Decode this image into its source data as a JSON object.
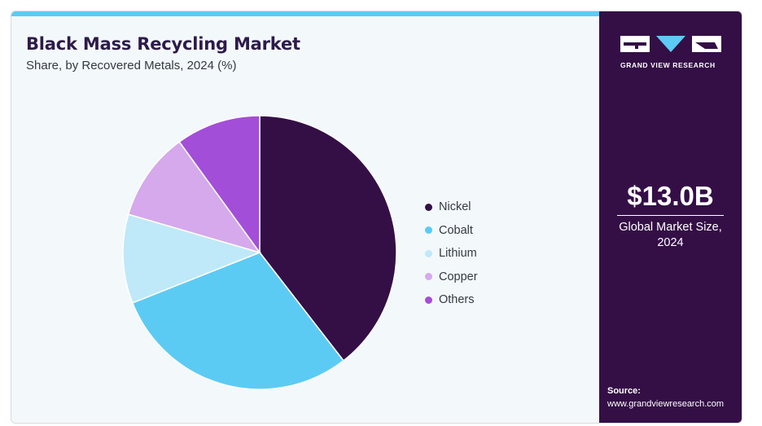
{
  "chart_data": {
    "type": "pie",
    "title": "Black Mass Recycling Market",
    "subtitle": "Share, by Recovered Metals, 2024 (%)",
    "series": [
      {
        "name": "Nickel",
        "value": 39.5,
        "color": "#340f46"
      },
      {
        "name": "Cobalt",
        "value": 29.5,
        "color": "#5ccbf4"
      },
      {
        "name": "Lithium",
        "value": 10.5,
        "color": "#bfe9f8"
      },
      {
        "name": "Copper",
        "value": 10.5,
        "color": "#d5a9ec"
      },
      {
        "name": "Others",
        "value": 10.0,
        "color": "#a34ed8"
      }
    ],
    "legend_position": "right"
  },
  "stat": {
    "value": "$13.0B",
    "label": "Global Market Size, 2024"
  },
  "brand": {
    "name": "GRAND VIEW RESEARCH",
    "icon": "gvr-logo-icon"
  },
  "source": {
    "label": "Source:",
    "url": "www.grandviewresearch.com"
  },
  "colors": {
    "panel": "#340f46",
    "accent": "#5ccbf4",
    "background": "#f3f8fb"
  }
}
